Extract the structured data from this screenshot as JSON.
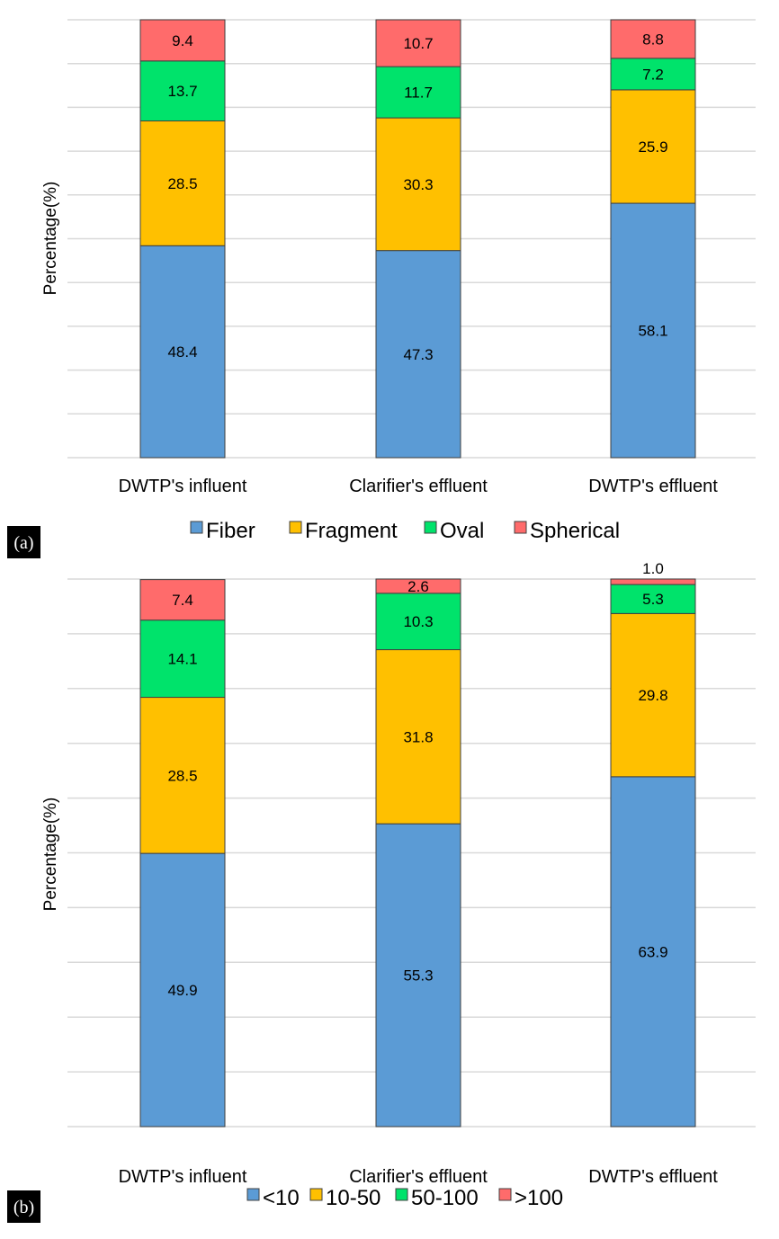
{
  "chart_data": [
    {
      "panel_label": "(a)",
      "type": "bar",
      "stacked": true,
      "ylabel": "Percentage(%)",
      "ylim": [
        0,
        100
      ],
      "grid": true,
      "legend_position": "bottom",
      "categories": [
        "DWTP's influent",
        "Clarifier's effluent",
        "DWTP's effluent"
      ],
      "series": [
        {
          "name": "Fiber",
          "color": "#5B9BD5",
          "values": [
            48.4,
            47.3,
            58.1
          ]
        },
        {
          "name": "Fragment",
          "color": "#FFC000",
          "values": [
            28.5,
            30.3,
            25.9
          ]
        },
        {
          "name": "Oval",
          "color": "#00E36B",
          "values": [
            13.7,
            11.7,
            7.2
          ]
        },
        {
          "name": "Spherical",
          "color": "#FF6B6B",
          "values": [
            9.4,
            10.7,
            8.8
          ]
        }
      ]
    },
    {
      "panel_label": "(b)",
      "type": "bar",
      "stacked": true,
      "ylabel": "Percentage(%)",
      "ylim": [
        0,
        100
      ],
      "grid": true,
      "legend_position": "bottom",
      "categories": [
        "DWTP's influent",
        "Clarifier's effluent",
        "DWTP's effluent"
      ],
      "series": [
        {
          "name": "<10",
          "color": "#5B9BD5",
          "values": [
            49.9,
            55.3,
            63.9
          ]
        },
        {
          "name": "10-50",
          "color": "#FFC000",
          "values": [
            28.5,
            31.8,
            29.8
          ]
        },
        {
          "name": "50-100",
          "color": "#00E36B",
          "values": [
            14.1,
            10.3,
            5.3
          ]
        },
        {
          "name": ">100",
          "color": "#FF6B6B",
          "values": [
            7.4,
            2.6,
            1.0
          ]
        }
      ]
    }
  ]
}
